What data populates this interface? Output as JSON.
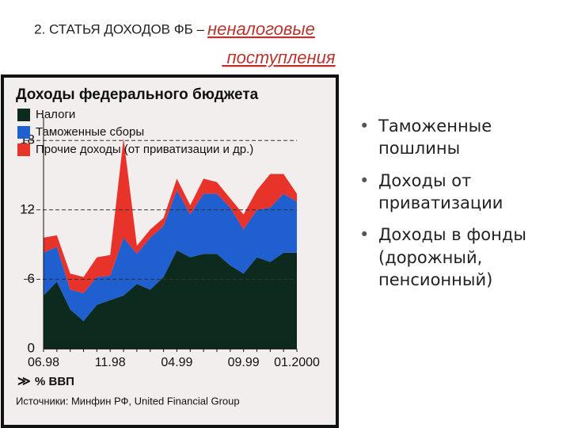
{
  "slide": {
    "title_prefix": "2. СТАТЬЯ ДОХОДОВ ФБ –",
    "title_emphasis": "неналоговые поступления",
    "bullets": [
      "Таможенные пошлины",
      "Доходы от приватизации",
      "Доходы в фонды (дорожный, пенсионный)"
    ]
  },
  "chart_data": {
    "type": "stacked_area",
    "title": "Доходы федерального бюджета",
    "y_label": "% ВВП",
    "source": "Источники: Минфин РФ, United Financial Group",
    "categories": [
      "06.98",
      null,
      null,
      null,
      null,
      "11.98",
      null,
      null,
      null,
      null,
      "04.99",
      null,
      null,
      null,
      null,
      "09.99",
      null,
      null,
      null,
      "01.2000"
    ],
    "series": [
      {
        "name": "Налоги",
        "color": "#0d2a1e",
        "values": [
          4.6,
          5.8,
          3.4,
          2.4,
          3.8,
          4.2,
          4.6,
          5.6,
          5.1,
          6.2,
          8.5,
          7.9,
          8.2,
          8.2,
          7.2,
          6.5,
          7.9,
          7.5,
          8.3,
          8.3
        ]
      },
      {
        "name": "Таможенные сборы",
        "color": "#1f5fd0",
        "values": [
          3.7,
          3.0,
          1.7,
          2.4,
          2.4,
          2.1,
          5.0,
          2.6,
          4.5,
          4.4,
          5.2,
          3.7,
          5.2,
          5.2,
          5.0,
          3.8,
          4.1,
          4.7,
          5.1,
          4.4
        ]
      },
      {
        "name": "Прочие доходы (от приватизации и др.)",
        "color": "#e8332a",
        "values": [
          1.3,
          1.0,
          1.4,
          1.4,
          1.7,
          1.8,
          8.6,
          0.7,
          0.7,
          0.7,
          1.0,
          0.8,
          1.3,
          1.0,
          0.8,
          1.3,
          1.7,
          2.9,
          1.7,
          0.7
        ]
      }
    ],
    "ylim": [
      0,
      20
    ],
    "yticks": [
      0,
      6,
      12,
      18
    ],
    "grid": true,
    "legend": "top-left"
  }
}
